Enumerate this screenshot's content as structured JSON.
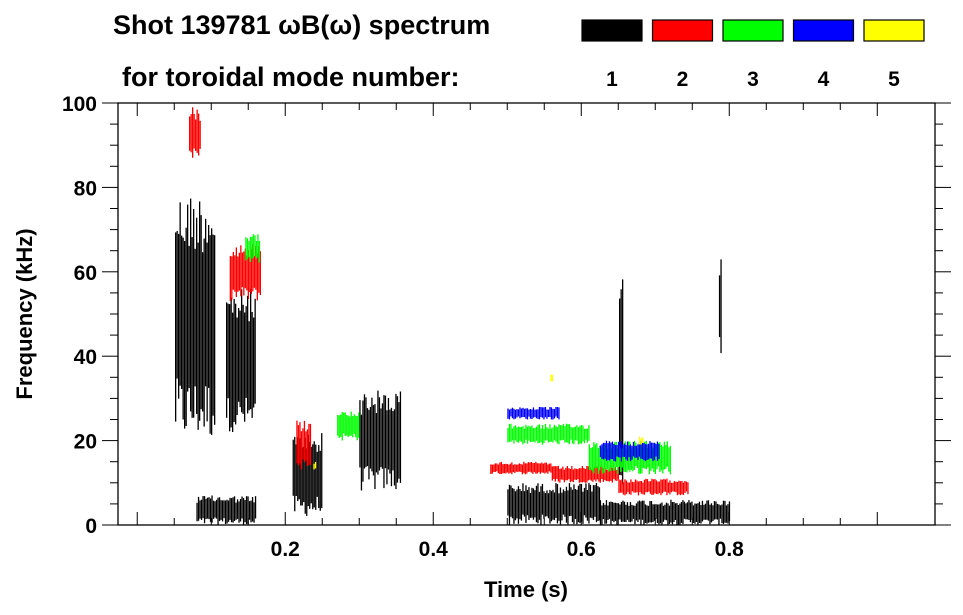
{
  "chart_data": {
    "type": "heatmap",
    "title_line1": "Shot 139781 ωB(ω) spectrum",
    "title_line2": "for toroidal mode number:",
    "xlabel": "Time (s)",
    "ylabel": "Frequency (kHz)",
    "xlim": [
      -0.026,
      1.078
    ],
    "ylim": [
      0,
      100
    ],
    "xticks": [
      0.2,
      0.4,
      0.6,
      0.8
    ],
    "xtick_labels": [
      "0.2",
      "0.4",
      "0.6",
      "0.8"
    ],
    "yticks": [
      0,
      20,
      40,
      60,
      80,
      100
    ],
    "ytick_labels": [
      "0",
      "20",
      "40",
      "60",
      "80",
      "100"
    ],
    "legend": [
      {
        "mode": "1",
        "color": "#000000"
      },
      {
        "mode": "2",
        "color": "#ff0000"
      },
      {
        "mode": "3",
        "color": "#00ff00"
      },
      {
        "mode": "4",
        "color": "#0000ff"
      },
      {
        "mode": "5",
        "color": "#ffff00"
      }
    ],
    "legend_placement": "top-right",
    "regions": [
      {
        "mode": 1,
        "t": [
          0.051,
          0.105
        ],
        "f": [
          20,
          79
        ]
      },
      {
        "mode": 1,
        "t": [
          0.12,
          0.16
        ],
        "f": [
          22,
          56
        ]
      },
      {
        "mode": 1,
        "t": [
          0.08,
          0.16
        ],
        "f": [
          0,
          7
        ]
      },
      {
        "mode": 1,
        "t": [
          0.21,
          0.25
        ],
        "f": [
          2,
          22
        ]
      },
      {
        "mode": 1,
        "t": [
          0.3,
          0.355
        ],
        "f": [
          8,
          32
        ]
      },
      {
        "mode": 1,
        "t": [
          0.5,
          0.625
        ],
        "f": [
          0,
          10
        ]
      },
      {
        "mode": 1,
        "t": [
          0.625,
          0.8
        ],
        "f": [
          0,
          6
        ]
      },
      {
        "mode": 1,
        "t": [
          0.651,
          0.656
        ],
        "f": [
          6,
          62
        ]
      },
      {
        "mode": 1,
        "t": [
          0.786,
          0.789
        ],
        "f": [
          40,
          65
        ]
      },
      {
        "mode": 2,
        "t": [
          0.07,
          0.085
        ],
        "f": [
          86,
          99
        ]
      },
      {
        "mode": 2,
        "t": [
          0.125,
          0.167
        ],
        "f": [
          53,
          67
        ]
      },
      {
        "mode": 2,
        "t": [
          0.215,
          0.235
        ],
        "f": [
          13,
          25
        ]
      },
      {
        "mode": 2,
        "t": [
          0.477,
          0.56
        ],
        "f": [
          12,
          15
        ]
      },
      {
        "mode": 2,
        "t": [
          0.56,
          0.65
        ],
        "f": [
          10,
          14
        ]
      },
      {
        "mode": 2,
        "t": [
          0.65,
          0.745
        ],
        "f": [
          7,
          11
        ]
      },
      {
        "mode": 3,
        "t": [
          0.146,
          0.166
        ],
        "f": [
          62,
          69
        ]
      },
      {
        "mode": 3,
        "t": [
          0.27,
          0.3
        ],
        "f": [
          20,
          27
        ]
      },
      {
        "mode": 3,
        "t": [
          0.5,
          0.61
        ],
        "f": [
          19,
          24
        ]
      },
      {
        "mode": 3,
        "t": [
          0.61,
          0.72
        ],
        "f": [
          12,
          20
        ]
      },
      {
        "mode": 4,
        "t": [
          0.5,
          0.57
        ],
        "f": [
          25,
          28
        ]
      },
      {
        "mode": 4,
        "t": [
          0.625,
          0.705
        ],
        "f": [
          15,
          20
        ]
      },
      {
        "mode": 5,
        "t": [
          0.238,
          0.242
        ],
        "f": [
          13,
          15
        ]
      },
      {
        "mode": 5,
        "t": [
          0.678,
          0.684
        ],
        "f": [
          19,
          21
        ]
      },
      {
        "mode": 5,
        "t": [
          0.558,
          0.562
        ],
        "f": [
          34,
          36
        ]
      }
    ]
  }
}
